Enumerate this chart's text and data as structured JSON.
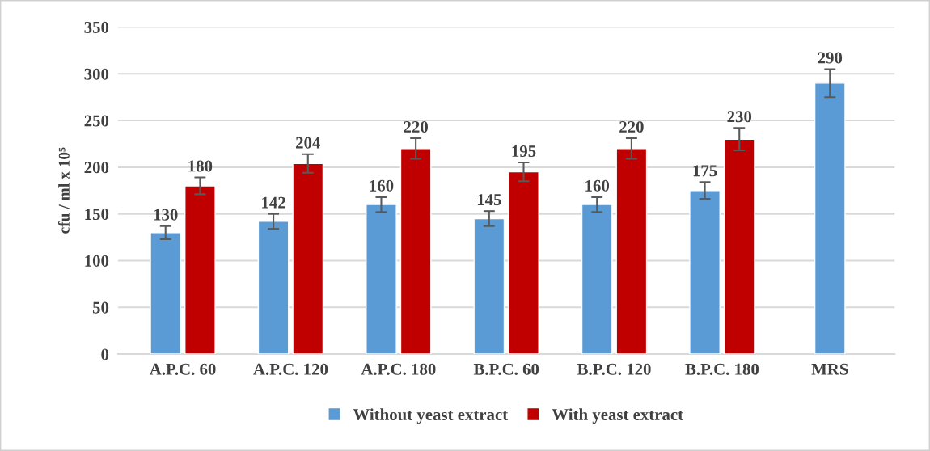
{
  "chart_data": {
    "type": "bar",
    "ylabel": "cfu / ml x 10⁵",
    "categories": [
      "A.P.C. 60",
      "A.P.C. 120",
      "A.P.C. 180",
      "B.P.C. 60",
      "B.P.C. 120",
      "B.P.C. 180",
      "MRS"
    ],
    "series": [
      {
        "name": "Without yeast extract",
        "color": "#5b9bd5",
        "values": [
          130,
          142,
          160,
          145,
          160,
          175,
          290
        ],
        "errors": [
          7,
          8,
          8,
          8,
          8,
          9,
          15
        ]
      },
      {
        "name": "With yeast extract",
        "color": "#c00000",
        "values": [
          180,
          204,
          220,
          195,
          220,
          230,
          null
        ],
        "errors": [
          9,
          10,
          11,
          10,
          11,
          12,
          null
        ]
      }
    ],
    "data_labels": true,
    "ylim": [
      0,
      350
    ],
    "yticks": [
      0,
      50,
      100,
      150,
      200,
      250,
      300,
      350
    ],
    "grid": "y",
    "legend": "bottom"
  }
}
